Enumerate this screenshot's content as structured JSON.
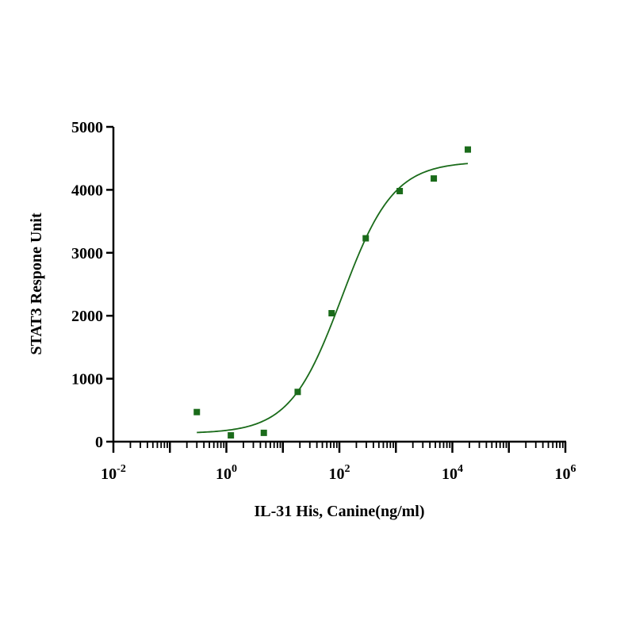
{
  "chart_data": {
    "type": "scatter",
    "title": "",
    "xlabel": "IL-31 His, Canine(ng/ml)",
    "ylabel": "STAT3 Respone Unit",
    "x_scale": "log10",
    "xlim": [
      0.01,
      1000000
    ],
    "ylim": [
      0,
      5000
    ],
    "x_major_ticks": [
      {
        "value": 0.01,
        "base": "10",
        "exp": "-2"
      },
      {
        "value": 1,
        "base": "10",
        "exp": "0"
      },
      {
        "value": 100,
        "base": "10",
        "exp": "2"
      },
      {
        "value": 10000,
        "base": "10",
        "exp": "4"
      },
      {
        "value": 1000000,
        "base": "10",
        "exp": "6"
      }
    ],
    "y_ticks": [
      0,
      1000,
      2000,
      3000,
      4000,
      5000
    ],
    "y_tick_labels": [
      "0",
      "1000",
      "2000",
      "3000",
      "4000",
      "5000"
    ],
    "grid": false,
    "legend": "none",
    "series": [
      {
        "color": "#1a6b1a",
        "marker": "square",
        "points": [
          {
            "x": 0.3,
            "y": 470
          },
          {
            "x": 1.2,
            "y": 100
          },
          {
            "x": 4.6,
            "y": 140
          },
          {
            "x": 18.3,
            "y": 790
          },
          {
            "x": 73,
            "y": 2040
          },
          {
            "x": 293,
            "y": 3230
          },
          {
            "x": 1170,
            "y": 3980
          },
          {
            "x": 4690,
            "y": 4180
          },
          {
            "x": 18800,
            "y": 4640
          }
        ]
      }
    ],
    "fit_curve": {
      "type": "4PL",
      "color": "#1a6b1a",
      "bottom": 130,
      "top": 4450,
      "ec50": 110,
      "hill": 0.95,
      "x_range": [
        0.3,
        18800
      ]
    }
  }
}
